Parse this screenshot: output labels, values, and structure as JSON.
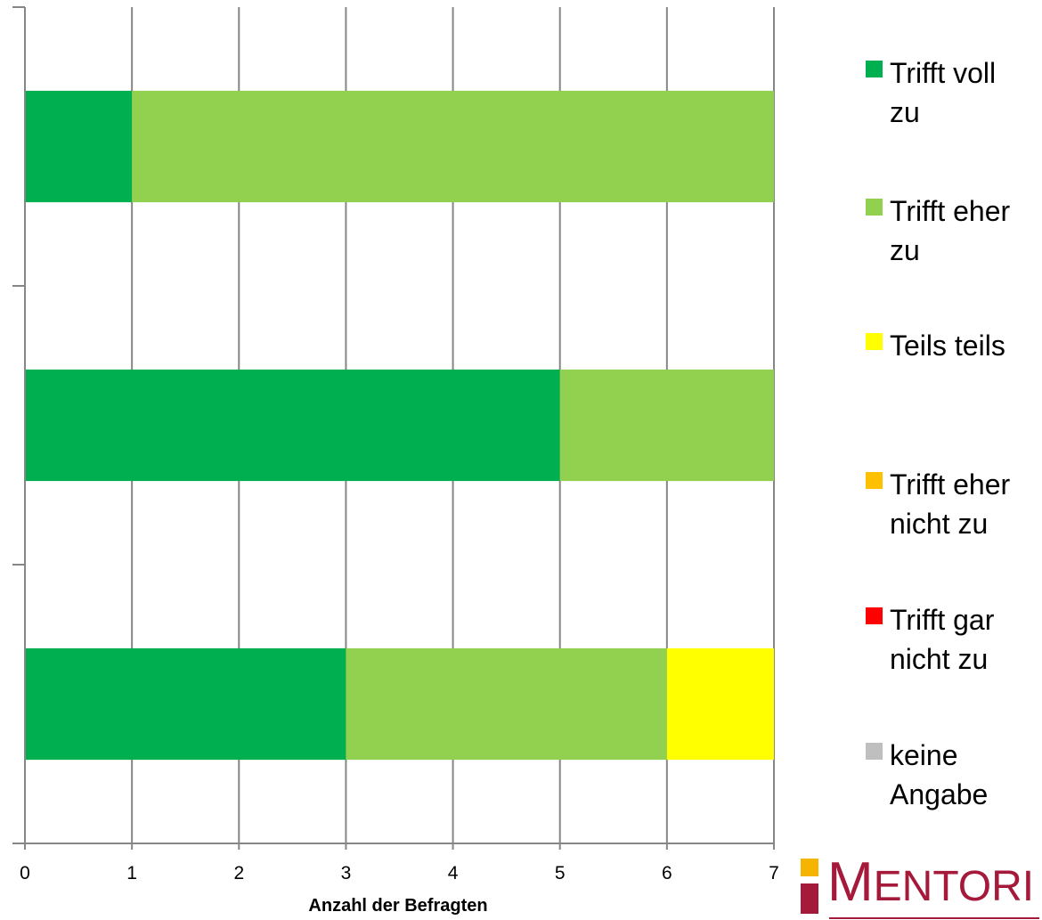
{
  "chart_data": {
    "type": "bar",
    "orientation": "horizontal",
    "stacked": true,
    "categories": [
      "",
      "",
      ""
    ],
    "xlabel": "Anzahl der Befragten",
    "xlim": [
      0,
      7
    ],
    "xticks": [
      "0",
      "1",
      "2",
      "3",
      "4",
      "5",
      "6",
      "7"
    ],
    "grid": true,
    "legend_position": "right",
    "series": [
      {
        "name": "Trifft voll zu",
        "color": "#00b050",
        "values": [
          1,
          5,
          3
        ]
      },
      {
        "name": "Trifft eher zu",
        "color": "#92d050",
        "values": [
          6,
          2,
          3
        ]
      },
      {
        "name": "Teils teils",
        "color": "#ffff00",
        "values": [
          0,
          0,
          1
        ]
      },
      {
        "name": "Trifft eher nicht zu",
        "color": "#ffc000",
        "values": [
          0,
          0,
          0
        ]
      },
      {
        "name": "Trifft gar nicht zu",
        "color": "#ff0000",
        "values": [
          0,
          0,
          0
        ]
      },
      {
        "name": "keine Angabe",
        "color": "#bfbfbf",
        "values": [
          0,
          0,
          0
        ]
      }
    ]
  },
  "legend": {
    "items": [
      {
        "text": "Trifft voll zu",
        "color": "#00b050"
      },
      {
        "text": "Trifft eher zu",
        "color": "#92d050"
      },
      {
        "text": "Teils teils",
        "color": "#ffff00"
      },
      {
        "text": "Trifft eher nicht zu",
        "color": "#ffc000"
      },
      {
        "text": "Trifft gar nicht zu",
        "color": "#ff0000"
      },
      {
        "text": "keine Angabe",
        "color": "#bfbfbf"
      }
    ]
  },
  "logo": {
    "first_letter": "M",
    "rest": "ENTORI",
    "color": "#a51a3b",
    "accent": "#f4b400"
  }
}
